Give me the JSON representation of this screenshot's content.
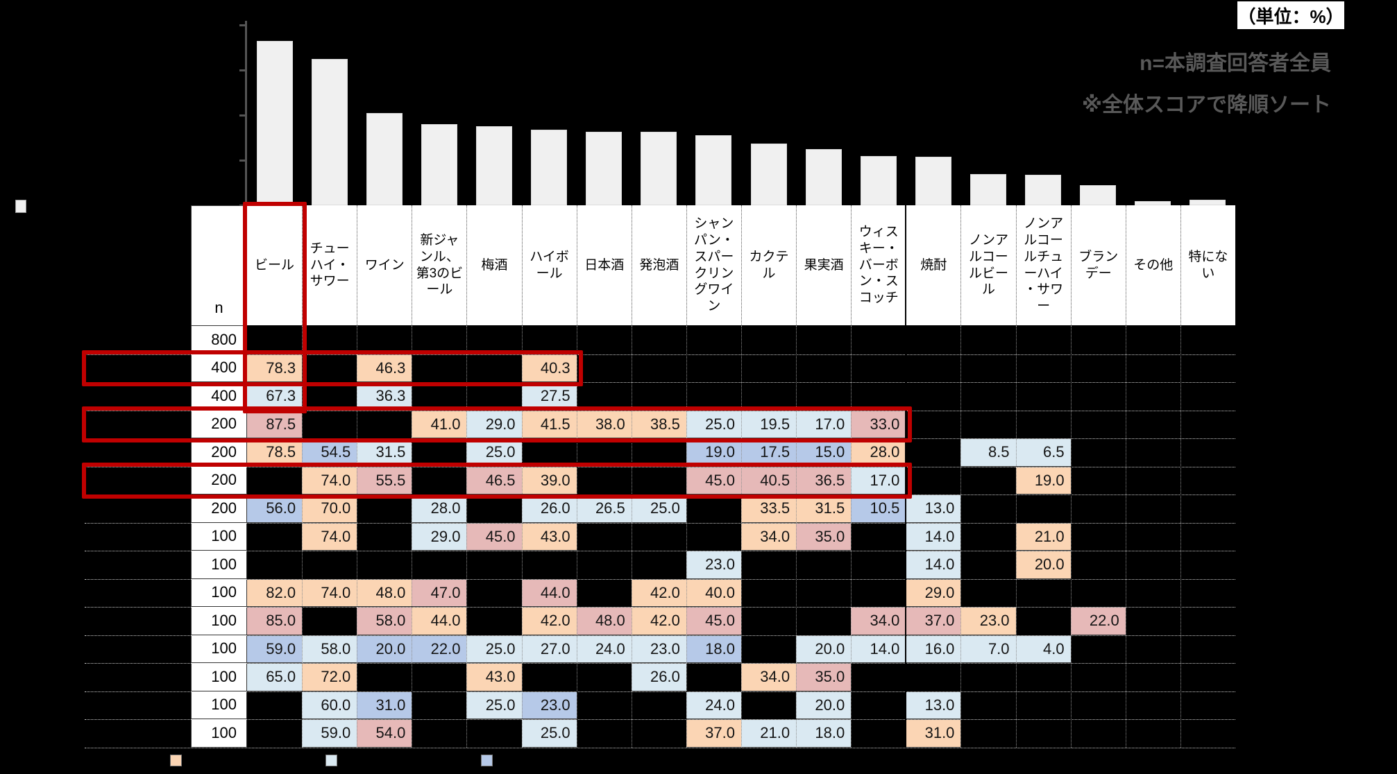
{
  "unit_label": "（単位：%）",
  "notes": {
    "line1": "n=本調査回答者全員",
    "line2": "※全体スコアで降順ソート"
  },
  "colors": {
    "bar_fill": "#F0F0F0",
    "axis": "#555555",
    "note_text": "#595959",
    "highlight_red": "#C00000",
    "cell_orange": "#FBD5B4",
    "cell_lightblue": "#DAE9F2",
    "cell_periwinkle": "#B6C9E8",
    "cell_rose": "#E6B9B8"
  },
  "chart_data": {
    "type": "bar",
    "title": "",
    "xlabel": "",
    "ylabel": "",
    "unit": "%",
    "ylim": [
      0,
      80
    ],
    "ytick_interval": 20,
    "grid": false,
    "legend_position": "left",
    "categories": [
      "ビール",
      "チューハイ・サワー",
      "ワイン",
      "新ジャンル、第3のビール",
      "梅酒",
      "ハイボール",
      "日本酒",
      "発泡酒",
      "シャンパン・スパークリングワイン",
      "カクテル",
      "果実酒",
      "ウィスキー・バーボン・スコッチ",
      "焼酎",
      "ノンアルコールビール",
      "ノンアルコールチューハイ・サワー",
      "ブランデー",
      "その他",
      "特にない"
    ],
    "values": [
      73,
      65,
      41,
      36,
      35,
      33.5,
      32.5,
      32.5,
      31,
      27.5,
      25,
      22,
      21.5,
      14,
      13.5,
      9,
      2,
      2.5
    ]
  },
  "table": {
    "n_header": "n",
    "columns": [
      "ビール",
      "チューハイ・サワー",
      "ワイン",
      "新ジャンル、第3のビール",
      "梅酒",
      "ハイボール",
      "日本酒",
      "発泡酒",
      "シャンパン・スパークリングワイン",
      "カクテル",
      "果実酒",
      "ウィスキー・バーボン・スコッチ",
      "焼酎",
      "ノンアルコールビール",
      "ノンアルコールチューハイ・サワー",
      "ブランデー",
      "その他",
      "特にない"
    ],
    "rows": [
      {
        "n": "800",
        "cells": []
      },
      {
        "n": "400",
        "cells": [
          [
            0,
            "78.3",
            "orange"
          ],
          [
            2,
            "46.3",
            "orange"
          ],
          [
            5,
            "40.3",
            "orange"
          ]
        ]
      },
      {
        "n": "400",
        "cells": [
          [
            0,
            "67.3",
            "lightblue"
          ],
          [
            2,
            "36.3",
            "lightblue"
          ],
          [
            5,
            "27.5",
            "lightblue"
          ]
        ]
      },
      {
        "n": "200",
        "cells": [
          [
            0,
            "87.5",
            "rose"
          ],
          [
            3,
            "41.0",
            "orange"
          ],
          [
            4,
            "29.0",
            "lightblue"
          ],
          [
            5,
            "41.5",
            "orange"
          ],
          [
            6,
            "38.0",
            "orange"
          ],
          [
            7,
            "38.5",
            "orange"
          ],
          [
            8,
            "25.0",
            "lightblue"
          ],
          [
            9,
            "19.5",
            "lightblue"
          ],
          [
            10,
            "17.0",
            "lightblue"
          ],
          [
            11,
            "33.0",
            "rose"
          ]
        ]
      },
      {
        "n": "200",
        "cells": [
          [
            0,
            "78.5",
            "orange"
          ],
          [
            1,
            "54.5",
            "periwinkle"
          ],
          [
            2,
            "31.5",
            "lightblue"
          ],
          [
            4,
            "25.0",
            "lightblue"
          ],
          [
            8,
            "19.0",
            "periwinkle"
          ],
          [
            9,
            "17.5",
            "periwinkle"
          ],
          [
            10,
            "15.0",
            "periwinkle"
          ],
          [
            11,
            "28.0",
            "orange"
          ],
          [
            13,
            "8.5",
            "lightblue"
          ],
          [
            14,
            "6.5",
            "lightblue"
          ]
        ]
      },
      {
        "n": "200",
        "cells": [
          [
            1,
            "74.0",
            "orange"
          ],
          [
            2,
            "55.5",
            "rose"
          ],
          [
            4,
            "46.5",
            "rose"
          ],
          [
            5,
            "39.0",
            "orange"
          ],
          [
            8,
            "45.0",
            "rose"
          ],
          [
            9,
            "40.5",
            "rose"
          ],
          [
            10,
            "36.5",
            "rose"
          ],
          [
            11,
            "17.0",
            "lightblue"
          ],
          [
            14,
            "19.0",
            "orange"
          ]
        ]
      },
      {
        "n": "200",
        "cells": [
          [
            0,
            "56.0",
            "periwinkle"
          ],
          [
            1,
            "70.0",
            "orange"
          ],
          [
            3,
            "28.0",
            "lightblue"
          ],
          [
            5,
            "26.0",
            "lightblue"
          ],
          [
            6,
            "26.5",
            "lightblue"
          ],
          [
            7,
            "25.0",
            "lightblue"
          ],
          [
            9,
            "33.5",
            "orange"
          ],
          [
            10,
            "31.5",
            "orange"
          ],
          [
            11,
            "10.5",
            "periwinkle"
          ],
          [
            12,
            "13.0",
            "lightblue"
          ]
        ]
      },
      {
        "n": "100",
        "cells": [
          [
            1,
            "74.0",
            "orange"
          ],
          [
            3,
            "29.0",
            "lightblue"
          ],
          [
            4,
            "45.0",
            "rose"
          ],
          [
            5,
            "43.0",
            "orange"
          ],
          [
            9,
            "34.0",
            "orange"
          ],
          [
            10,
            "35.0",
            "rose"
          ],
          [
            12,
            "14.0",
            "lightblue"
          ],
          [
            14,
            "21.0",
            "orange"
          ]
        ]
      },
      {
        "n": "100",
        "cells": [
          [
            8,
            "23.0",
            "lightblue"
          ],
          [
            12,
            "14.0",
            "lightblue"
          ],
          [
            14,
            "20.0",
            "orange"
          ]
        ]
      },
      {
        "n": "100",
        "cells": [
          [
            0,
            "82.0",
            "orange"
          ],
          [
            1,
            "74.0",
            "orange"
          ],
          [
            2,
            "48.0",
            "orange"
          ],
          [
            3,
            "47.0",
            "rose"
          ],
          [
            5,
            "44.0",
            "rose"
          ],
          [
            7,
            "42.0",
            "orange"
          ],
          [
            8,
            "40.0",
            "orange"
          ],
          [
            12,
            "29.0",
            "orange"
          ]
        ]
      },
      {
        "n": "100",
        "cells": [
          [
            0,
            "85.0",
            "rose"
          ],
          [
            2,
            "58.0",
            "rose"
          ],
          [
            3,
            "44.0",
            "orange"
          ],
          [
            5,
            "42.0",
            "orange"
          ],
          [
            6,
            "48.0",
            "rose"
          ],
          [
            7,
            "42.0",
            "orange"
          ],
          [
            8,
            "45.0",
            "rose"
          ],
          [
            11,
            "34.0",
            "rose"
          ],
          [
            12,
            "37.0",
            "rose"
          ],
          [
            13,
            "23.0",
            "orange"
          ],
          [
            15,
            "22.0",
            "rose"
          ]
        ]
      },
      {
        "n": "100",
        "cells": [
          [
            0,
            "59.0",
            "periwinkle"
          ],
          [
            1,
            "58.0",
            "lightblue"
          ],
          [
            2,
            "20.0",
            "periwinkle"
          ],
          [
            3,
            "22.0",
            "periwinkle"
          ],
          [
            4,
            "25.0",
            "lightblue"
          ],
          [
            5,
            "27.0",
            "lightblue"
          ],
          [
            6,
            "24.0",
            "lightblue"
          ],
          [
            7,
            "23.0",
            "lightblue"
          ],
          [
            8,
            "18.0",
            "periwinkle"
          ],
          [
            10,
            "20.0",
            "lightblue"
          ],
          [
            11,
            "14.0",
            "lightblue"
          ],
          [
            12,
            "16.0",
            "lightblue"
          ],
          [
            13,
            "7.0",
            "lightblue"
          ],
          [
            14,
            "4.0",
            "lightblue"
          ]
        ]
      },
      {
        "n": "100",
        "cells": [
          [
            0,
            "65.0",
            "lightblue"
          ],
          [
            1,
            "72.0",
            "orange"
          ],
          [
            4,
            "43.0",
            "orange"
          ],
          [
            7,
            "26.0",
            "lightblue"
          ],
          [
            9,
            "34.0",
            "orange"
          ],
          [
            10,
            "35.0",
            "rose"
          ]
        ]
      },
      {
        "n": "100",
        "cells": [
          [
            1,
            "60.0",
            "lightblue"
          ],
          [
            2,
            "31.0",
            "periwinkle"
          ],
          [
            4,
            "25.0",
            "lightblue"
          ],
          [
            5,
            "23.0",
            "periwinkle"
          ],
          [
            8,
            "24.0",
            "lightblue"
          ],
          [
            10,
            "20.0",
            "lightblue"
          ],
          [
            12,
            "13.0",
            "lightblue"
          ]
        ]
      },
      {
        "n": "100",
        "cells": [
          [
            1,
            "59.0",
            "lightblue"
          ],
          [
            2,
            "54.0",
            "rose"
          ],
          [
            5,
            "25.0",
            "lightblue"
          ],
          [
            8,
            "37.0",
            "orange"
          ],
          [
            9,
            "21.0",
            "lightblue"
          ],
          [
            10,
            "18.0",
            "lightblue"
          ],
          [
            12,
            "31.0",
            "orange"
          ]
        ]
      }
    ]
  },
  "highlights": [
    {
      "name": "beer-column-box",
      "type": "column",
      "column": "ビール",
      "rows_covered": 3
    },
    {
      "name": "row-box-n400-top",
      "type": "row",
      "row_index": 1,
      "through_column": "ハイボール"
    },
    {
      "name": "row-box-n200-first",
      "type": "row",
      "row_index": 3,
      "through_column": "ウィスキー・バーボン・スコッチ"
    },
    {
      "name": "row-box-n200-third",
      "type": "row",
      "row_index": 5,
      "through_column": "ウィスキー・バーボン・スコッチ"
    }
  ],
  "bottom_legend": [
    {
      "name": "legend-swatch-orange",
      "color": "#FBD5B4"
    },
    {
      "name": "legend-swatch-lightblue",
      "color": "#DAE9F2"
    },
    {
      "name": "legend-swatch-periwinkle",
      "color": "#B6C9E8"
    }
  ],
  "chart_legend": [
    {
      "name": "legend-swatch-overall",
      "color": "#F0F0F0"
    }
  ]
}
